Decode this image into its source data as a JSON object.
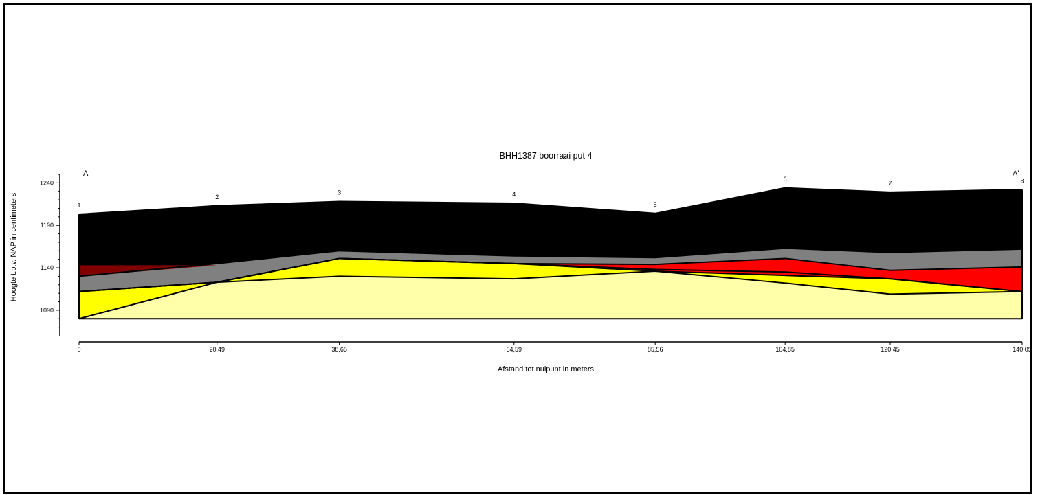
{
  "chart_data": {
    "type": "area",
    "title": "BHH1387 boorraai put 4",
    "xlabel": "Afstand tot nulpunt in meters",
    "ylabel": "Hoogte t.o.v. NAP in centimeters",
    "start_label": "A",
    "end_label": "A'",
    "xlim": [
      0,
      140.05
    ],
    "ylim": [
      1060,
      1250
    ],
    "y_ticks": [
      1240,
      1190,
      1140,
      1090
    ],
    "x_tick_labels": [
      "0",
      "20,49",
      "38,65",
      "64,59",
      "85,56",
      "104,85",
      "120,45",
      "140,05"
    ],
    "boreholes": {
      "labels": [
        "1",
        "2",
        "3",
        "4",
        "5",
        "6",
        "7",
        "8"
      ],
      "x": [
        0,
        20.49,
        38.65,
        64.59,
        85.56,
        104.85,
        120.45,
        140.05
      ],
      "surface": [
        1203,
        1213,
        1218,
        1216,
        1204,
        1234,
        1229,
        1232
      ]
    },
    "base_elevation": 1080,
    "colors": {
      "black": "#000000",
      "dark_red": "#800000",
      "grey": "#808080",
      "red": "#ff0000",
      "yellow": "#ffff00",
      "pale_yellow": "#ffffaa"
    },
    "layers": [
      {
        "color": "pale_yellow",
        "top": [
          1080,
          1123,
          1130,
          1127,
          1136,
          1122,
          1109,
          1112
        ]
      },
      {
        "color": "yellow",
        "top": [
          1112,
          1123,
          1151,
          1145,
          1136,
          1131,
          1127,
          1112
        ]
      },
      {
        "color": "red",
        "top": [
          1112,
          1123,
          1151,
          1145,
          1144,
          1151,
          1137,
          1141
        ]
      },
      {
        "color": "grey",
        "top": [
          1130,
          1145,
          1160,
          1154,
          1152,
          1163,
          1158,
          1162
        ]
      },
      {
        "color": "black",
        "top": [
          1203,
          1213,
          1218,
          1216,
          1204,
          1234,
          1229,
          1232
        ]
      }
    ],
    "lenses": [
      {
        "color": "dark_red",
        "x": [
          0,
          20.49,
          0
        ],
        "y": [
          1143,
          1143,
          1130
        ]
      }
    ],
    "contacts": [
      [
        1080,
        1123,
        1130,
        1127,
        1136,
        1122,
        1109,
        1112
      ],
      [
        1112,
        1123,
        1151,
        1145,
        1136,
        1131,
        1127,
        1112
      ],
      [
        1112,
        1123,
        1151,
        1145,
        1138,
        1135,
        1127,
        1112
      ],
      [
        1112,
        1123,
        1151,
        1145,
        1144,
        1151,
        1137,
        1141
      ],
      [
        1130,
        1145,
        1160,
        1154,
        1152,
        1163,
        1158,
        1162
      ],
      [
        1203,
        1213,
        1218,
        1216,
        1204,
        1234,
        1229,
        1232
      ]
    ],
    "grid": false,
    "legend": "none"
  }
}
